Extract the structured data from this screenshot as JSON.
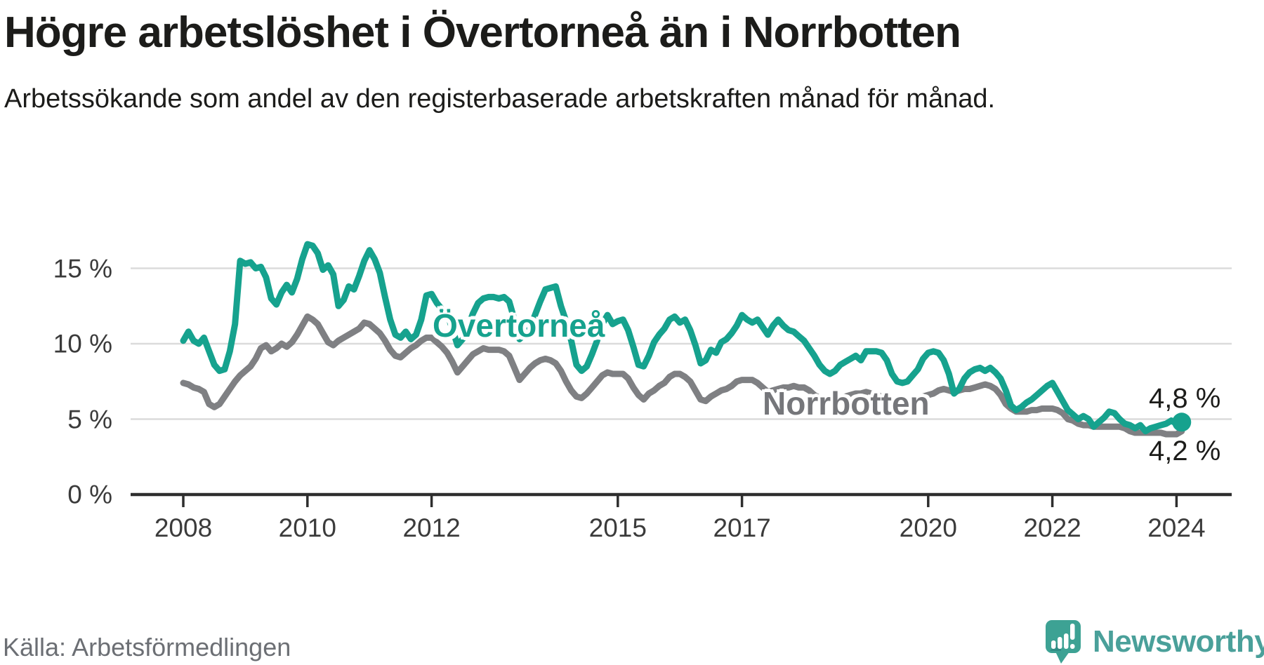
{
  "title": "Högre arbetslöshet i Övertorneå än i Norrbotten",
  "subtitle": "Arbetssökande som andel av den registerbaserade arbetskraften månad för månad.",
  "source": "Källa: Arbetsförmedlingen",
  "branding": {
    "logo_text": "Newsworthy",
    "icon": "speech-bubble-bar-chart"
  },
  "colors": {
    "overtornea": "#16a28e",
    "norrbotten": "#7f8083",
    "norrbotten_label": "#75767a",
    "grid": "#dbdbdb",
    "axis": "#2e2e2e",
    "tick_text": "#3b3b3b",
    "text": "#1c1c1a",
    "muted": "#6c6f74",
    "brand": "#3da294"
  },
  "chart_data": {
    "type": "line",
    "title": "Högre arbetslöshet i Övertorneå än i Norrbotten",
    "xlabel": "",
    "ylabel": "",
    "grid": "horizontal",
    "ylim": [
      0,
      17
    ],
    "xlim": [
      2007.15,
      2024.8
    ],
    "yticks": [
      {
        "value": 0,
        "label": "0 %"
      },
      {
        "value": 5,
        "label": "5 %"
      },
      {
        "value": 10,
        "label": "10 %"
      },
      {
        "value": 15,
        "label": "15 %"
      }
    ],
    "xticks": [
      {
        "value": 2008,
        "label": "2008"
      },
      {
        "value": 2010,
        "label": "2010"
      },
      {
        "value": 2012,
        "label": "2012"
      },
      {
        "value": 2015,
        "label": "2015"
      },
      {
        "value": 2017,
        "label": "2017"
      },
      {
        "value": 2020,
        "label": "2020"
      },
      {
        "value": 2022,
        "label": "2022"
      },
      {
        "value": 2024,
        "label": "2024"
      }
    ],
    "unit": "%",
    "frequency": "monthly",
    "series": [
      {
        "name": "Övertorneå",
        "color": "#16a28e",
        "end_dot": true,
        "end_value_label": "4,8 %",
        "start_year": 2008,
        "values": [
          10.2,
          10.8,
          10.2,
          10.0,
          10.4,
          9.5,
          8.6,
          8.2,
          8.3,
          9.5,
          11.3,
          15.5,
          15.3,
          15.4,
          15.0,
          15.1,
          14.4,
          13.0,
          12.6,
          13.4,
          13.9,
          13.4,
          14.3,
          15.6,
          16.6,
          16.5,
          16.0,
          14.9,
          15.2,
          14.6,
          12.5,
          12.9,
          13.8,
          13.6,
          14.5,
          15.5,
          16.2,
          15.6,
          14.7,
          13.1,
          11.6,
          10.6,
          10.4,
          10.8,
          10.3,
          10.6,
          11.6,
          13.2,
          13.3,
          12.7,
          12.3,
          12.0,
          11.0,
          9.9,
          10.3,
          11.1,
          12.0,
          12.7,
          13.0,
          13.1,
          13.1,
          13.0,
          13.1,
          12.8,
          11.6,
          10.3,
          10.6,
          11.0,
          11.9,
          12.8,
          13.6,
          13.7,
          13.8,
          12.5,
          11.5,
          10.2,
          8.6,
          8.2,
          8.5,
          9.3,
          10.2,
          11.3,
          11.9,
          11.3,
          11.5,
          11.6,
          10.9,
          9.8,
          8.6,
          8.5,
          9.2,
          10.1,
          10.6,
          11.0,
          11.6,
          11.8,
          11.4,
          11.6,
          10.9,
          9.9,
          8.7,
          8.9,
          9.6,
          9.4,
          10.1,
          10.3,
          10.7,
          11.2,
          11.9,
          11.6,
          11.4,
          11.6,
          11.1,
          10.6,
          11.2,
          11.6,
          11.2,
          10.9,
          10.8,
          10.5,
          10.2,
          9.7,
          9.2,
          8.6,
          8.2,
          8.0,
          8.2,
          8.6,
          8.8,
          9.0,
          9.2,
          8.9,
          9.5,
          9.5,
          9.5,
          9.4,
          8.9,
          8.0,
          7.5,
          7.4,
          7.5,
          7.9,
          8.3,
          9.0,
          9.4,
          9.5,
          9.4,
          8.9,
          8.0,
          6.7,
          7.0,
          7.7,
          8.1,
          8.3,
          8.4,
          8.2,
          8.4,
          8.1,
          7.7,
          6.9,
          5.9,
          5.6,
          5.8,
          6.1,
          6.3,
          6.6,
          6.9,
          7.2,
          7.4,
          6.8,
          6.2,
          5.6,
          5.3,
          5.0,
          5.2,
          5.0,
          4.5,
          4.8,
          5.1,
          5.5,
          5.4,
          5.0,
          4.7,
          4.6,
          4.4,
          4.6,
          4.2,
          4.4,
          4.5,
          4.6,
          4.7,
          4.9,
          4.7,
          4.8
        ]
      },
      {
        "name": "Norrbotten",
        "color": "#7f8083",
        "end_dot": false,
        "end_value_label": "4,2 %",
        "start_year": 2008,
        "values": [
          7.4,
          7.3,
          7.1,
          7.0,
          6.8,
          6.0,
          5.8,
          6.0,
          6.5,
          7.0,
          7.5,
          7.9,
          8.2,
          8.5,
          9.0,
          9.7,
          9.9,
          9.5,
          9.7,
          10.0,
          9.8,
          10.1,
          10.6,
          11.2,
          11.8,
          11.6,
          11.3,
          10.7,
          10.1,
          9.9,
          10.2,
          10.4,
          10.6,
          10.8,
          11.0,
          11.4,
          11.3,
          11.0,
          10.7,
          10.2,
          9.6,
          9.2,
          9.1,
          9.4,
          9.7,
          9.9,
          10.2,
          10.4,
          10.4,
          10.1,
          9.8,
          9.4,
          8.8,
          8.1,
          8.5,
          8.9,
          9.3,
          9.5,
          9.7,
          9.6,
          9.6,
          9.6,
          9.5,
          9.2,
          8.4,
          7.6,
          8.0,
          8.4,
          8.7,
          8.9,
          9.0,
          8.9,
          8.7,
          8.2,
          7.5,
          6.9,
          6.5,
          6.4,
          6.7,
          7.1,
          7.5,
          7.9,
          8.1,
          8.0,
          8.0,
          8.0,
          7.7,
          7.1,
          6.6,
          6.3,
          6.7,
          6.9,
          7.2,
          7.4,
          7.8,
          8.0,
          8.0,
          7.8,
          7.5,
          6.9,
          6.3,
          6.2,
          6.5,
          6.7,
          6.9,
          7.0,
          7.2,
          7.5,
          7.6,
          7.6,
          7.6,
          7.4,
          7.1,
          6.8,
          6.9,
          7.0,
          7.1,
          7.1,
          7.2,
          7.1,
          7.1,
          6.9,
          6.6,
          6.4,
          6.2,
          6.2,
          6.3,
          6.4,
          6.5,
          6.6,
          6.7,
          6.7,
          6.8,
          6.7,
          6.6,
          6.5,
          6.4,
          6.2,
          6.2,
          6.2,
          6.3,
          6.3,
          6.4,
          6.5,
          6.6,
          6.7,
          6.9,
          7.0,
          6.9,
          6.8,
          6.9,
          7.0,
          7.0,
          7.1,
          7.2,
          7.3,
          7.2,
          7.0,
          6.6,
          6.0,
          5.7,
          5.5,
          5.5,
          5.5,
          5.6,
          5.6,
          5.7,
          5.7,
          5.7,
          5.6,
          5.4,
          5.0,
          4.9,
          4.7,
          4.6,
          4.6,
          4.5,
          4.5,
          4.5,
          4.5,
          4.5,
          4.5,
          4.4,
          4.2,
          4.1,
          4.1,
          4.1,
          4.1,
          4.1,
          4.1,
          4.0,
          4.0,
          4.0,
          4.2
        ]
      }
    ],
    "annotations": [
      {
        "series": "Övertorneå",
        "label": "4,8 %"
      },
      {
        "series": "Norrbotten",
        "label": "4,2 %"
      }
    ],
    "legend_position": "inline-labels"
  }
}
